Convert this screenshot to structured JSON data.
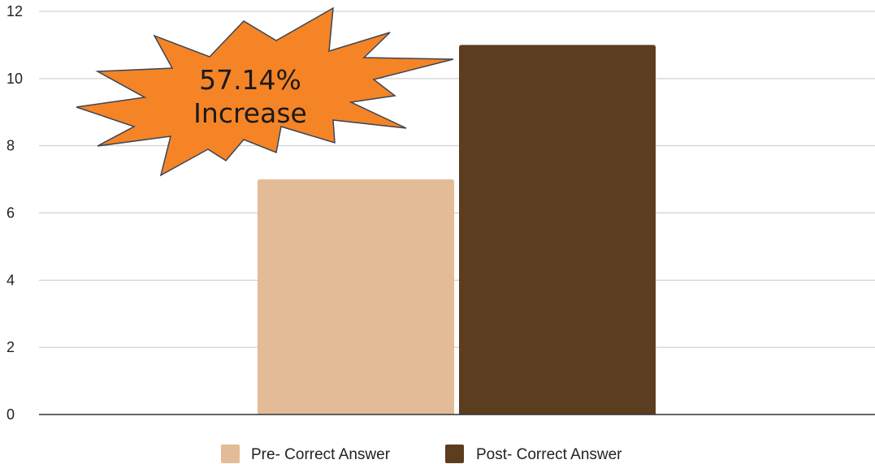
{
  "chart_data": {
    "type": "bar",
    "categories": [
      ""
    ],
    "series": [
      {
        "name": "Pre- Correct Answer",
        "values": [
          7
        ],
        "color": "#e3bb96"
      },
      {
        "name": "Post- Correct Answer",
        "values": [
          11
        ],
        "color": "#5c3d1f"
      }
    ],
    "ylim": [
      0,
      12
    ],
    "yticks": [
      0,
      2,
      4,
      6,
      8,
      10,
      12
    ],
    "grid": true,
    "legend_position": "bottom",
    "annotation": {
      "line1": "57.14%",
      "line2": "Increase",
      "shape": "starburst",
      "fill": "#f58426",
      "stroke": "#3a4555"
    }
  }
}
